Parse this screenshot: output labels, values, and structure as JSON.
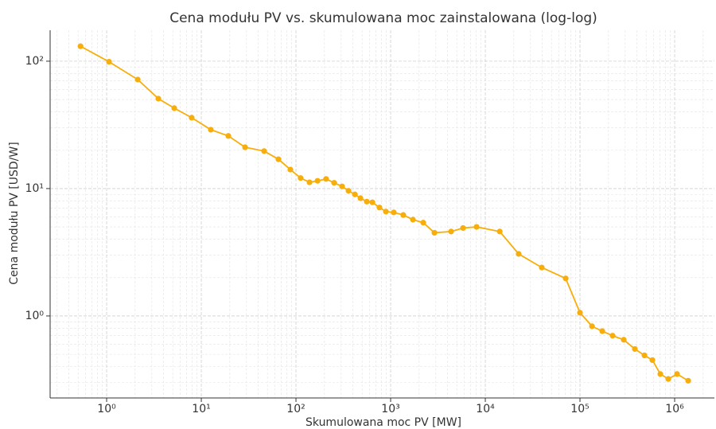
{
  "chart_data": {
    "type": "line",
    "title": "Cena modułu PV vs. skumulowana moc zainstalowana (log-log)",
    "xlabel": "Skumulowana moc PV [MW]",
    "ylabel": "Cena modułu PV [USD/W]",
    "x": [
      0.53,
      1.06,
      2.13,
      3.52,
      5.18,
      7.92,
      12.6,
      19.3,
      29.0,
      46.1,
      65.3,
      87.3,
      112,
      139,
      169,
      208,
      253,
      307,
      359,
      419,
      480,
      560,
      641,
      762,
      891,
      1080,
      1360,
      1720,
      2210,
      2900,
      4350,
      5820,
      8090,
      14200,
      22500,
      39500,
      70600,
      100000,
      134000,
      172000,
      221000,
      290000,
      380000,
      480000,
      582000,
      706000,
      857000,
      1060000,
      1390000
    ],
    "values": [
      131,
      99,
      71.8,
      50.8,
      42.8,
      36.0,
      29.0,
      25.9,
      21.1,
      19.7,
      17.0,
      14.1,
      12.1,
      11.2,
      11.5,
      11.9,
      11.1,
      10.4,
      9.6,
      9.0,
      8.4,
      7.9,
      7.8,
      7.1,
      6.6,
      6.5,
      6.2,
      5.7,
      5.4,
      4.5,
      4.6,
      4.9,
      5.0,
      4.6,
      3.07,
      2.4,
      1.97,
      1.06,
      0.83,
      0.76,
      0.7,
      0.65,
      0.55,
      0.49,
      0.45,
      0.35,
      0.32,
      0.35,
      0.31
    ],
    "color": "#f8ae0a",
    "xscale": "log",
    "yscale": "log",
    "xlim": [
      0.253,
      2630000
    ],
    "ylim": [
      0.227,
      175
    ],
    "xticks": [
      {
        "value": 1,
        "label": "10⁰"
      },
      {
        "value": 10,
        "label": "10¹"
      },
      {
        "value": 100,
        "label": "10²"
      },
      {
        "value": 1000,
        "label": "10³"
      },
      {
        "value": 10000,
        "label": "10⁴"
      },
      {
        "value": 100000,
        "label": "10⁵"
      },
      {
        "value": 1000000,
        "label": "10⁶"
      }
    ],
    "yticks": [
      {
        "value": 1,
        "label": "10⁰"
      },
      {
        "value": 10,
        "label": "10¹"
      },
      {
        "value": 100,
        "label": "10²"
      }
    ],
    "grid": true
  }
}
